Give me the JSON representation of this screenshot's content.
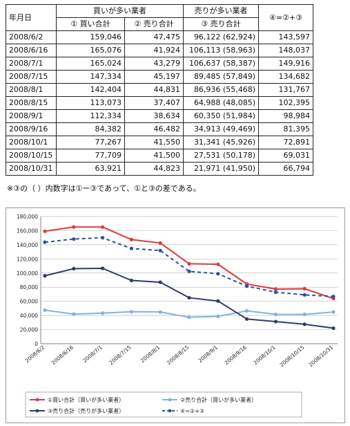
{
  "table": {
    "headers": {
      "date": "年月日",
      "buy_group": "買いが多い業者",
      "sell_group": "売りが多い業者",
      "col4": "④=②+③",
      "col1": "① 買い合計",
      "col2": "② 売り合計",
      "col3": "③ 売り合計"
    },
    "rows": [
      {
        "date": "2008/6/2",
        "c1": "159,046",
        "c2": "47,475",
        "c3": "96,122 (62,924)",
        "c4": "143,597"
      },
      {
        "date": "2008/6/16",
        "c1": "165,076",
        "c2": "41,924",
        "c3": "106,113 (58,963)",
        "c4": "148,037"
      },
      {
        "date": "2008/7/1",
        "c1": "165,024",
        "c2": "43,279",
        "c3": "106,637 (58,387)",
        "c4": "149,916"
      },
      {
        "date": "2008/7/15",
        "c1": "147,334",
        "c2": "45,197",
        "c3": "89,485 (57,849)",
        "c4": "134,682"
      },
      {
        "date": "2008/8/1",
        "c1": "142,404",
        "c2": "44,831",
        "c3": "86,936 (55,468)",
        "c4": "131,767"
      },
      {
        "date": "2008/8/15",
        "c1": "113,073",
        "c2": "37,407",
        "c3": "64,988 (48,085)",
        "c4": "102,395"
      },
      {
        "date": "2008/9/1",
        "c1": "112,334",
        "c2": "38,634",
        "c3": "60,350 (51,984)",
        "c4": "98,984"
      },
      {
        "date": "2008/9/16",
        "c1": "84,382",
        "c2": "46,482",
        "c3": "34,913 (49,469)",
        "c4": "81,395"
      },
      {
        "date": "2008/10/1",
        "c1": "77,267",
        "c2": "41,550",
        "c3": "31,341 (45,926)",
        "c4": "72,891"
      },
      {
        "date": "2008/10/15",
        "c1": "77,709",
        "c2": "41,500",
        "c3": "27,531 (50,178)",
        "c4": "69,031"
      },
      {
        "date": "2008/10/31",
        "c1": "63,921",
        "c2": "44,823",
        "c3": "21,971 (41,950)",
        "c4": "66,794"
      }
    ]
  },
  "note": "※③の（ ）内数字は①ー③であって、①と③の差である。",
  "chart_data": {
    "type": "line",
    "categories": [
      "2008/6/2",
      "2008/6/16",
      "2008/7/1",
      "2008/7/15",
      "2008/8/1",
      "2008/8/15",
      "2008/9/1",
      "2008/9/16",
      "2008/10/1",
      "2008/10/15",
      "2008/10/31"
    ],
    "ylim": [
      0,
      180000
    ],
    "yticks": [
      0,
      20000,
      40000,
      60000,
      80000,
      100000,
      120000,
      140000,
      160000,
      180000
    ],
    "ytick_labels": [
      "0",
      "20,000",
      "40,000",
      "60,000",
      "80,000",
      "100,000",
      "120,000",
      "140,000",
      "160,000",
      "180,000"
    ],
    "grid": true,
    "legend_position": "bottom",
    "series": [
      {
        "name": "①買い合計（買いが多い業者）",
        "color": "#e0393e",
        "style": "solid",
        "values": [
          159046,
          165076,
          165024,
          147334,
          142404,
          113073,
          112334,
          84382,
          77267,
          77709,
          63921
        ]
      },
      {
        "name": "②売り合計（買いが多い業者）",
        "color": "#7fb2e6",
        "style": "solid",
        "values": [
          47475,
          41924,
          43279,
          45197,
          44831,
          37407,
          38634,
          46482,
          41550,
          41500,
          44823
        ]
      },
      {
        "name": "③売り合計（売りが多い業者）",
        "color": "#2f3a6b",
        "style": "solid",
        "values": [
          96122,
          106113,
          106637,
          89485,
          86936,
          64988,
          60350,
          34913,
          31341,
          27531,
          21971
        ]
      },
      {
        "name": "④=②+③",
        "color": "#2d4fa0",
        "style": "dashed",
        "values": [
          143597,
          148037,
          149916,
          134682,
          131767,
          102395,
          98984,
          81395,
          72891,
          69031,
          66794
        ]
      }
    ]
  }
}
